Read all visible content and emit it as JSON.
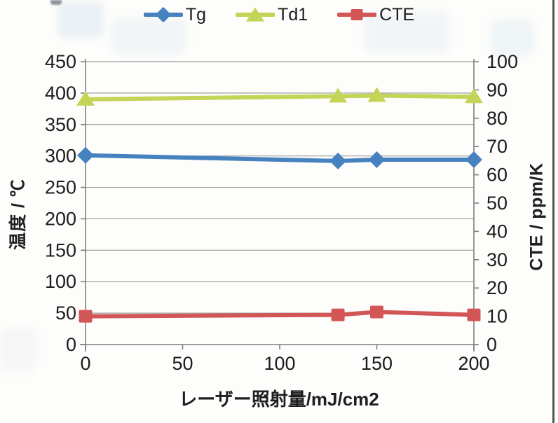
{
  "chart_data": {
    "type": "line",
    "title": "",
    "x": [
      0,
      130,
      150,
      200
    ],
    "x_ticks": [
      0,
      50,
      100,
      150,
      200
    ],
    "xlim": [
      0,
      200
    ],
    "xlabel": "レーザー照射量/mJ/cm2",
    "left_axis": {
      "label": "温度 / ℃",
      "min": 0,
      "max": 450,
      "step": 50
    },
    "right_axis": {
      "label": "CTE / ppm/K",
      "min": 0,
      "max": 100,
      "step": 10
    },
    "grid": "horizontal",
    "legend_position": "top",
    "series": [
      {
        "name": "Tg",
        "axis": "left",
        "marker": "diamond",
        "color": "#4682C0",
        "values": [
          301,
          292,
          294,
          294
        ]
      },
      {
        "name": "Td1",
        "axis": "left",
        "marker": "triangle",
        "color": "#C3D456",
        "values": [
          390,
          395,
          396,
          394
        ]
      },
      {
        "name": "CTE",
        "axis": "right",
        "marker": "square",
        "color": "#D35656",
        "values": [
          10,
          10.5,
          11.5,
          10.5
        ]
      }
    ]
  },
  "colors": {
    "grid": "#9b9b9b",
    "axis": "#7f7f7f",
    "text": "#1c1c1c",
    "scan_edge": "#3a3a3a"
  }
}
